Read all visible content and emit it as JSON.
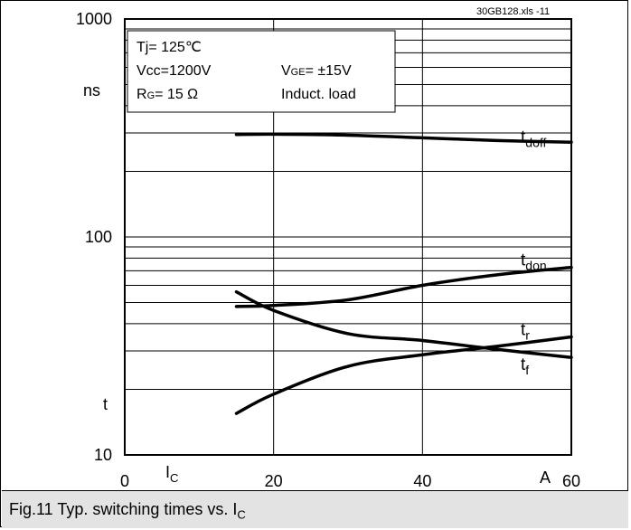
{
  "chart_data": {
    "type": "line",
    "x_scale": "linear",
    "y_scale": "log",
    "xlim": [
      0,
      60
    ],
    "ylim": [
      10,
      1000
    ],
    "x_ticks": [
      {
        "value": 0,
        "label": "0"
      },
      {
        "value": 20,
        "label": "20"
      },
      {
        "value": 40,
        "label": "40"
      },
      {
        "value": 60,
        "label": "60"
      }
    ],
    "y_ticks": [
      {
        "value": 10,
        "label": "10"
      },
      {
        "value": 100,
        "label": "100"
      },
      {
        "value": 1000,
        "label": "1000"
      }
    ],
    "x_unit": "A",
    "x_symbol": "I",
    "x_symbol_sub": "C",
    "y_symbol": "t",
    "y_unit": "ns",
    "grid": true,
    "file_label": "30GB128.xls  -11",
    "conditions": {
      "tj": "Tj= 125℃",
      "vcc": "Vcc=1200V",
      "vge_main": "V",
      "vge_sub": "GE",
      "vge_value": "= ±15V",
      "rg_main": "R",
      "rg_sub": "G",
      "rg_value": "=  15 Ω",
      "load": "Induct. load"
    },
    "series": [
      {
        "name": "tdoff",
        "label_main": "t",
        "label_sub": "doff",
        "x": [
          15,
          20,
          30,
          40,
          50,
          60
        ],
        "values": [
          295,
          296,
          293,
          285,
          277,
          272
        ]
      },
      {
        "name": "tdon",
        "label_main": "t",
        "label_sub": "don",
        "x": [
          15,
          20,
          30,
          40,
          50,
          60
        ],
        "values": [
          48,
          48.5,
          51.5,
          60,
          67,
          72.5
        ]
      },
      {
        "name": "tr",
        "label_main": "t",
        "label_sub": "r",
        "x": [
          15,
          20,
          30,
          40,
          50,
          60
        ],
        "values": [
          15.5,
          19,
          25.5,
          28.8,
          31.5,
          34.8
        ]
      },
      {
        "name": "tf",
        "label_main": "t",
        "label_sub": "f",
        "x": [
          15,
          20,
          30,
          40,
          50,
          60
        ],
        "values": [
          56,
          46,
          36,
          33.5,
          30.5,
          28
        ]
      }
    ]
  },
  "caption": {
    "text": "Fig.11 Typ. switching times vs. I",
    "sub": "C"
  }
}
